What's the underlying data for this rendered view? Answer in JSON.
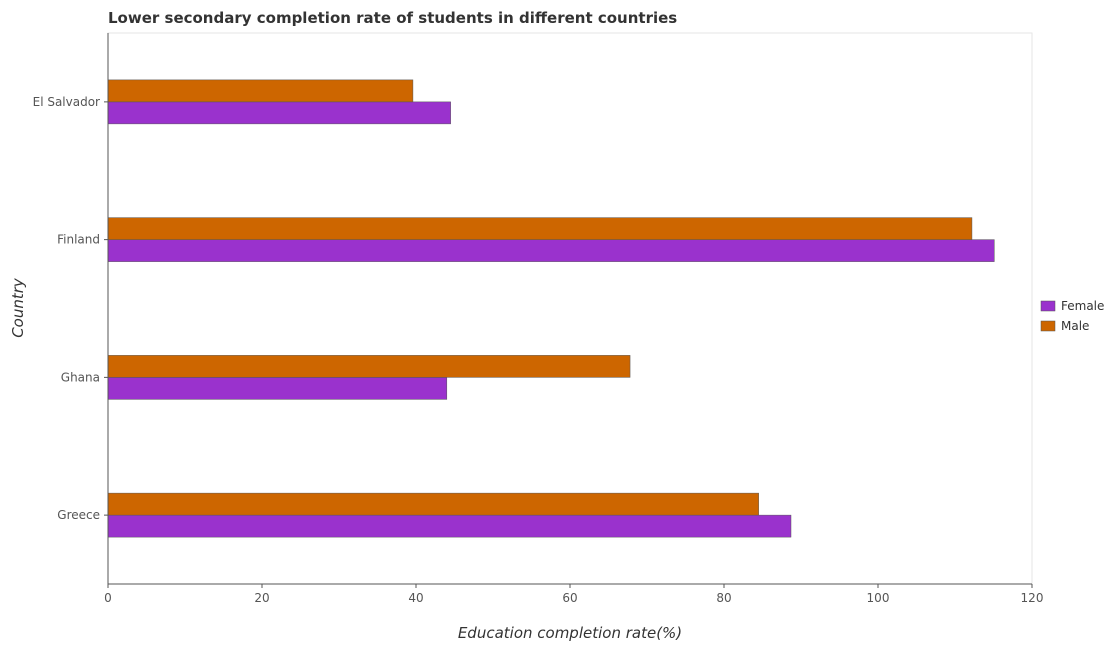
{
  "chart_data": {
    "type": "bar",
    "orientation": "horizontal",
    "title": "Lower secondary completion rate of students in different countries",
    "xlabel": "Education completion rate(%)",
    "ylabel": "Country",
    "categories": [
      "El Salvador",
      "Finland",
      "Ghana",
      "Greece"
    ],
    "series": [
      {
        "name": "Female",
        "color": "#9a32cd",
        "values": [
          44.5,
          115.1,
          44.0,
          88.7
        ]
      },
      {
        "name": "Male",
        "color": "#cd6600",
        "values": [
          39.6,
          112.2,
          67.8,
          84.5
        ]
      }
    ],
    "xlim": [
      0,
      120
    ],
    "xticks": [
      0,
      20,
      40,
      60,
      80,
      100,
      120
    ],
    "xtick_labels": [
      "0",
      "20",
      "40",
      "60",
      "80",
      "100",
      "120"
    ],
    "grid": false,
    "legend_position": "right"
  }
}
